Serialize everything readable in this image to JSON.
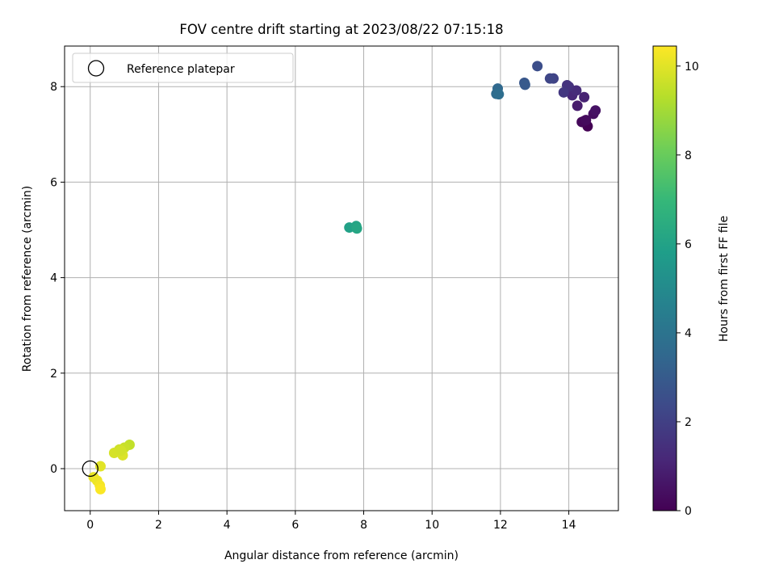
{
  "chart_data": {
    "type": "scatter",
    "title": "FOV centre drift starting at 2023/08/22 07:15:18",
    "xlabel": "Angular distance from reference (arcmin)",
    "ylabel": "Rotation from reference (arcmin)",
    "xlim": [
      -0.75,
      15.45
    ],
    "ylim": [
      -0.88,
      8.85
    ],
    "xticks": [
      0,
      2,
      4,
      6,
      8,
      10,
      12,
      14
    ],
    "yticks": [
      0,
      2,
      4,
      6,
      8
    ],
    "grid": true,
    "legend": {
      "position": "top-left",
      "entries": [
        "Reference platepar"
      ]
    },
    "reference_point": {
      "x": 0,
      "y": 0,
      "label": "Reference platepar"
    },
    "colorbar": {
      "label": "Hours from first FF file",
      "colormap": "viridis",
      "range": [
        0,
        10.45
      ],
      "ticks": [
        0,
        2,
        4,
        6,
        8,
        10
      ]
    },
    "points": [
      {
        "x": 14.55,
        "y": 7.17,
        "hours": 0.0
      },
      {
        "x": 14.45,
        "y": 7.28,
        "hours": 0.1
      },
      {
        "x": 14.38,
        "y": 7.26,
        "hours": 0.2
      },
      {
        "x": 14.5,
        "y": 7.3,
        "hours": 0.3
      },
      {
        "x": 14.72,
        "y": 7.43,
        "hours": 0.4
      },
      {
        "x": 14.78,
        "y": 7.5,
        "hours": 0.5
      },
      {
        "x": 14.25,
        "y": 7.6,
        "hours": 0.8
      },
      {
        "x": 14.45,
        "y": 7.78,
        "hours": 1.0
      },
      {
        "x": 14.1,
        "y": 7.82,
        "hours": 1.15
      },
      {
        "x": 14.22,
        "y": 7.92,
        "hours": 1.3
      },
      {
        "x": 14.0,
        "y": 8.0,
        "hours": 1.45
      },
      {
        "x": 13.95,
        "y": 8.03,
        "hours": 1.55
      },
      {
        "x": 13.85,
        "y": 7.88,
        "hours": 1.7
      },
      {
        "x": 13.55,
        "y": 8.17,
        "hours": 2.1
      },
      {
        "x": 13.45,
        "y": 8.17,
        "hours": 2.2
      },
      {
        "x": 13.08,
        "y": 8.43,
        "hours": 2.5
      },
      {
        "x": 12.7,
        "y": 8.08,
        "hours": 2.85
      },
      {
        "x": 12.72,
        "y": 8.04,
        "hours": 2.95
      },
      {
        "x": 11.92,
        "y": 7.96,
        "hours": 3.55
      },
      {
        "x": 11.88,
        "y": 7.85,
        "hours": 3.65
      },
      {
        "x": 11.95,
        "y": 7.84,
        "hours": 3.75
      },
      {
        "x": 7.58,
        "y": 5.05,
        "hours": 5.95
      },
      {
        "x": 7.78,
        "y": 5.08,
        "hours": 6.1
      },
      {
        "x": 7.8,
        "y": 5.03,
        "hours": 6.2
      },
      {
        "x": 1.15,
        "y": 0.5,
        "hours": 9.5
      },
      {
        "x": 1.0,
        "y": 0.44,
        "hours": 9.6
      },
      {
        "x": 0.85,
        "y": 0.4,
        "hours": 9.7
      },
      {
        "x": 0.7,
        "y": 0.33,
        "hours": 9.8
      },
      {
        "x": 0.95,
        "y": 0.28,
        "hours": 9.9
      },
      {
        "x": 0.9,
        "y": 0.38,
        "hours": 9.75
      },
      {
        "x": 0.3,
        "y": 0.05,
        "hours": 10.0
      },
      {
        "x": 0.1,
        "y": -0.18,
        "hours": 10.1
      },
      {
        "x": 0.2,
        "y": -0.25,
        "hours": 10.2
      },
      {
        "x": 0.28,
        "y": -0.35,
        "hours": 10.3
      },
      {
        "x": 0.3,
        "y": -0.43,
        "hours": 10.4
      }
    ],
    "colors": {
      "grid": "#b0b0b0",
      "reference_edge": "#000000",
      "colormap_stops": [
        "#440154",
        "#482878",
        "#3e4989",
        "#31688e",
        "#26828e",
        "#1f9e89",
        "#35b779",
        "#6ece58",
        "#b5de2b",
        "#fde725"
      ]
    }
  }
}
